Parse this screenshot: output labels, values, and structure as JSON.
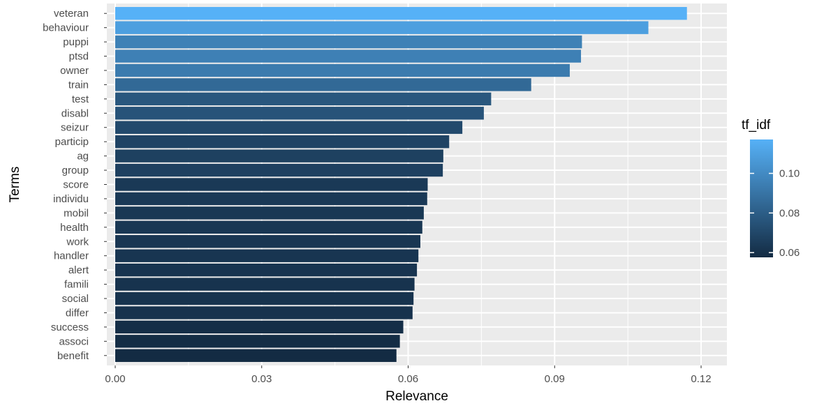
{
  "chart_data": {
    "type": "bar",
    "orientation": "horizontal",
    "xlabel": "Relevance",
    "ylabel": "Terms",
    "xlim": [
      0,
      0.123
    ],
    "xticks": [
      "0.00",
      "0.03",
      "0.06",
      "0.09",
      "0.12"
    ],
    "xtick_values": [
      0,
      0.03,
      0.06,
      0.09,
      0.12
    ],
    "grid": true,
    "categories": [
      "veteran",
      "behaviour",
      "puppi",
      "ptsd",
      "owner",
      "train",
      "test",
      "disabl",
      "seizur",
      "particip",
      "ag",
      "group",
      "score",
      "individu",
      "mobil",
      "health",
      "work",
      "handler",
      "alert",
      "famili",
      "social",
      "differ",
      "success",
      "associ",
      "benefit"
    ],
    "values": [
      0.1171,
      0.1092,
      0.0956,
      0.0954,
      0.0931,
      0.0852,
      0.077,
      0.0755,
      0.0711,
      0.0684,
      0.0672,
      0.0671,
      0.064,
      0.0639,
      0.0632,
      0.0629,
      0.0625,
      0.0621,
      0.0618,
      0.0613,
      0.0611,
      0.0609,
      0.059,
      0.0583,
      0.0576
    ],
    "legend": {
      "title": "tf_idf",
      "position": "right",
      "ticks": [
        "0.06",
        "0.08",
        "0.10"
      ],
      "tick_values": [
        0.06,
        0.08,
        0.1
      ],
      "range": [
        0.0576,
        0.1171
      ],
      "color_low": "#132B43",
      "color_high": "#56B1F7"
    }
  },
  "colors": {
    "panel_background": "#ebebeb",
    "grid_major": "#ffffff",
    "low": "#132B43",
    "high": "#56B1F7"
  }
}
